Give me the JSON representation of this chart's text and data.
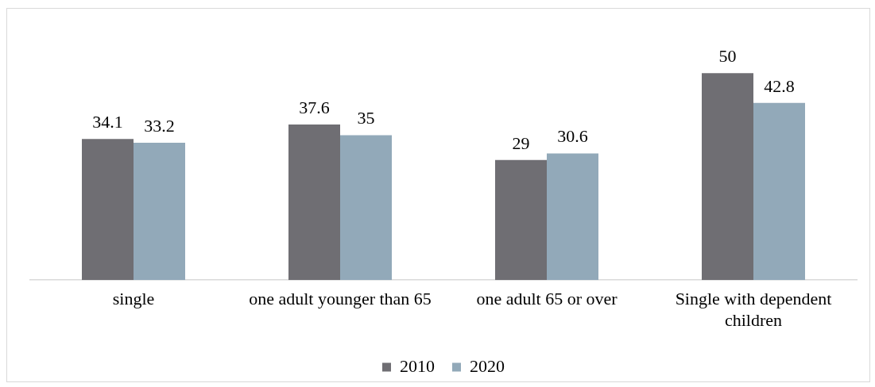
{
  "chart_data": {
    "type": "bar",
    "categories": [
      "single",
      "one adult younger than 65",
      "one adult 65 or over",
      "Single with dependent children"
    ],
    "series": [
      {
        "name": "2010",
        "color": "#6f6e73",
        "values": [
          34.1,
          37.6,
          29,
          50
        ]
      },
      {
        "name": "2020",
        "color": "#92a9b9",
        "values": [
          33.2,
          35,
          30.6,
          42.8
        ]
      }
    ],
    "data_labels": true,
    "legend": "bottom"
  }
}
